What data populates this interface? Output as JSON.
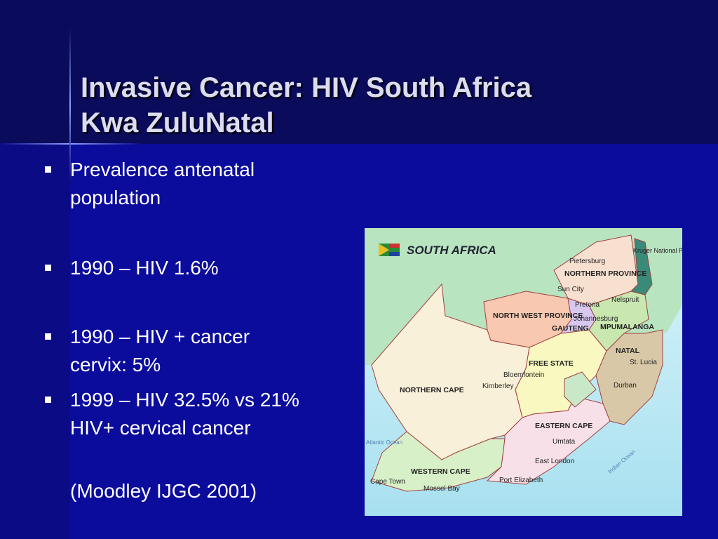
{
  "slide": {
    "title": [
      "Invasive Cancer: HIV South Africa",
      "Kwa ZuluNatal"
    ],
    "bullets": [
      "Prevalence antenatal population",
      "1990 – HIV 1.6%",
      "1990 – HIV + cancer cervix: 5%",
      "1999 – HIV 32.5% vs 21%  HIV+ cervical cancer"
    ],
    "citation": "(Moodley IJGC 2001)"
  },
  "map": {
    "title": "SOUTH AFRICA",
    "labels": [
      "Pietersburg",
      "NORTHERN PROVINCE",
      "Kruger National Park",
      "Sun City",
      "Pretoria",
      "Nelspruit",
      "NORTH WEST PROVINCE",
      "Johannesburg",
      "GAUTENG",
      "MPUMALANGA",
      "NATAL",
      "St. Lucia",
      "FREE STATE",
      "Bloemfontein",
      "Kimberley",
      "NORTHERN CAPE",
      "Durban",
      "EASTERN CAPE",
      "Umtata",
      "Atlantic Ocean",
      "East London",
      "Indian Ocean",
      "WESTERN CAPE",
      "Cape Town",
      "Mossel Bay",
      "Port Elizabeth"
    ]
  }
}
